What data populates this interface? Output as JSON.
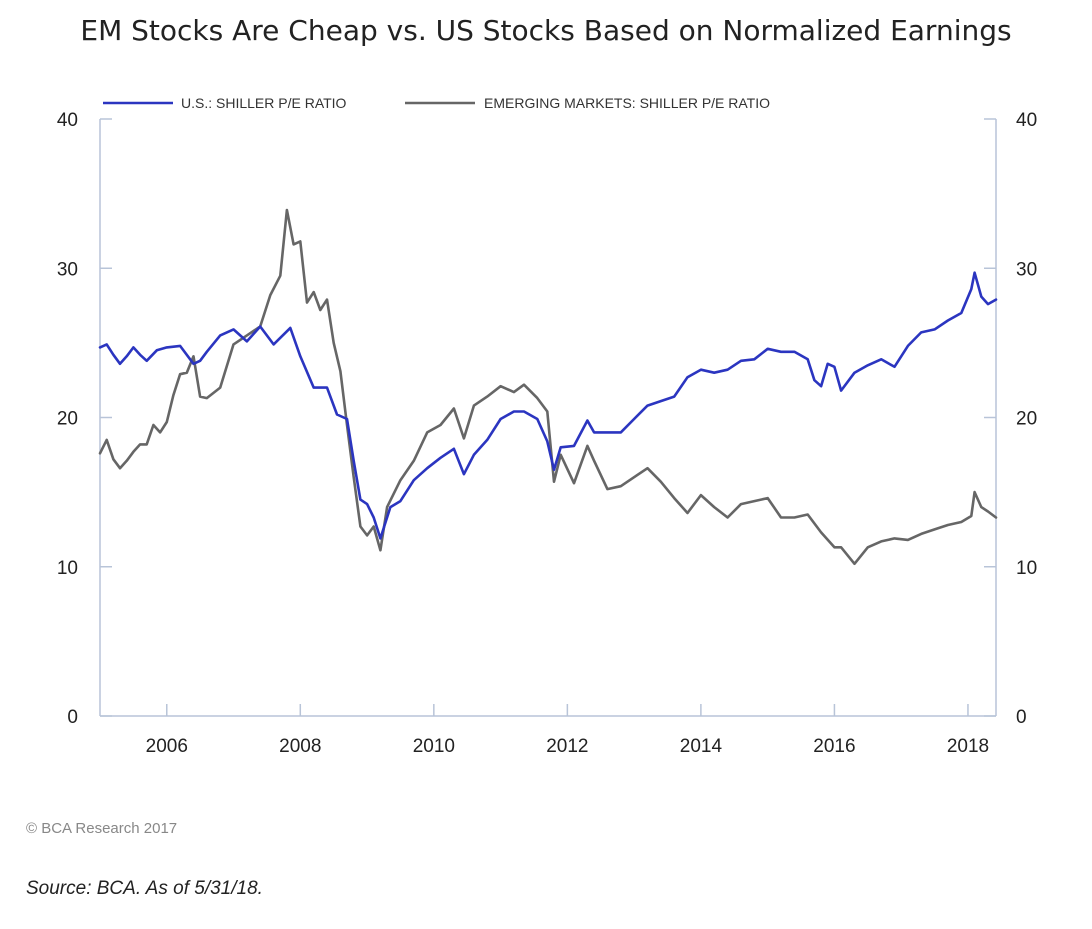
{
  "title": "EM Stocks Are Cheap vs. US Stocks Based on Normalized Earnings",
  "copyright": "© BCA Research 2017",
  "source": "Source: BCA. As of 5/31/18.",
  "colors": {
    "us": "#2b35c0",
    "em": "#666666",
    "axis": "#b8c4d8"
  },
  "chart_data": {
    "type": "line",
    "title": "EM Stocks Are Cheap vs. US Stocks Based on Normalized Earnings",
    "xlim": [
      2005.0,
      2018.42
    ],
    "ylim": [
      0,
      40
    ],
    "y_ticks": [
      0,
      10,
      20,
      30,
      40
    ],
    "x_ticks": [
      2006,
      2008,
      2010,
      2012,
      2014,
      2016,
      2018
    ],
    "legend_position": "top",
    "grid": false,
    "series": [
      {
        "name": "U.S.: SHILLER P/E RATIO",
        "color": "#2b35c0",
        "x": [
          2005.0,
          2005.1,
          2005.2,
          2005.3,
          2005.4,
          2005.5,
          2005.6,
          2005.7,
          2005.85,
          2006.0,
          2006.2,
          2006.4,
          2006.5,
          2006.6,
          2006.8,
          2007.0,
          2007.2,
          2007.4,
          2007.6,
          2007.85,
          2008.0,
          2008.2,
          2008.4,
          2008.55,
          2008.7,
          2008.8,
          2008.9,
          2009.0,
          2009.1,
          2009.2,
          2009.35,
          2009.5,
          2009.7,
          2009.9,
          2010.1,
          2010.3,
          2010.45,
          2010.6,
          2010.8,
          2011.0,
          2011.2,
          2011.35,
          2011.55,
          2011.7,
          2011.8,
          2011.9,
          2012.1,
          2012.3,
          2012.4,
          2012.6,
          2012.8,
          2013.0,
          2013.2,
          2013.4,
          2013.6,
          2013.8,
          2014.0,
          2014.2,
          2014.4,
          2014.6,
          2014.8,
          2015.0,
          2015.2,
          2015.4,
          2015.6,
          2015.7,
          2015.8,
          2015.9,
          2016.0,
          2016.1,
          2016.3,
          2016.5,
          2016.7,
          2016.9,
          2017.1,
          2017.3,
          2017.5,
          2017.7,
          2017.9,
          2018.05,
          2018.1,
          2018.2,
          2018.3,
          2018.42
        ],
        "values": [
          24.7,
          24.9,
          24.2,
          23.6,
          24.1,
          24.7,
          24.2,
          23.8,
          24.5,
          24.7,
          24.8,
          23.6,
          23.8,
          24.4,
          25.5,
          25.9,
          25.1,
          26.1,
          24.9,
          26.0,
          24.1,
          22.0,
          22.0,
          20.2,
          19.9,
          17.1,
          14.5,
          14.2,
          13.3,
          11.9,
          14.0,
          14.4,
          15.8,
          16.6,
          17.3,
          17.9,
          16.2,
          17.5,
          18.5,
          19.9,
          20.4,
          20.4,
          19.9,
          18.4,
          16.5,
          18.0,
          18.1,
          19.8,
          19.0,
          19.0,
          19.0,
          19.9,
          20.8,
          21.1,
          21.4,
          22.7,
          23.2,
          23.0,
          23.2,
          23.8,
          23.9,
          24.6,
          24.4,
          24.4,
          23.9,
          22.5,
          22.1,
          23.6,
          23.4,
          21.8,
          23.0,
          23.5,
          23.9,
          23.4,
          24.8,
          25.7,
          25.9,
          26.5,
          27.0,
          28.6,
          29.7,
          28.1,
          27.6,
          27.9
        ]
      },
      {
        "name": "EMERGING MARKETS: SHILLER P/E RATIO",
        "color": "#666666",
        "x": [
          2005.0,
          2005.1,
          2005.2,
          2005.3,
          2005.4,
          2005.5,
          2005.6,
          2005.7,
          2005.8,
          2005.9,
          2006.0,
          2006.1,
          2006.2,
          2006.3,
          2006.4,
          2006.5,
          2006.6,
          2006.8,
          2007.0,
          2007.2,
          2007.4,
          2007.55,
          2007.7,
          2007.8,
          2007.9,
          2008.0,
          2008.1,
          2008.2,
          2008.3,
          2008.4,
          2008.5,
          2008.6,
          2008.7,
          2008.8,
          2008.9,
          2009.0,
          2009.1,
          2009.2,
          2009.3,
          2009.5,
          2009.7,
          2009.9,
          2010.1,
          2010.3,
          2010.45,
          2010.6,
          2010.8,
          2011.0,
          2011.2,
          2011.35,
          2011.55,
          2011.7,
          2011.8,
          2011.9,
          2012.1,
          2012.3,
          2012.4,
          2012.6,
          2012.8,
          2013.0,
          2013.2,
          2013.4,
          2013.6,
          2013.8,
          2014.0,
          2014.2,
          2014.4,
          2014.6,
          2014.8,
          2015.0,
          2015.2,
          2015.4,
          2015.6,
          2015.8,
          2016.0,
          2016.1,
          2016.3,
          2016.5,
          2016.7,
          2016.9,
          2017.1,
          2017.3,
          2017.5,
          2017.7,
          2017.9,
          2018.05,
          2018.1,
          2018.2,
          2018.3,
          2018.42
        ],
        "values": [
          17.6,
          18.5,
          17.2,
          16.6,
          17.1,
          17.7,
          18.2,
          18.2,
          19.5,
          19.0,
          19.7,
          21.5,
          22.9,
          23.0,
          24.1,
          21.4,
          21.3,
          22.0,
          24.9,
          25.5,
          26.1,
          28.2,
          29.5,
          33.9,
          31.6,
          31.8,
          27.7,
          28.4,
          27.2,
          27.9,
          25.0,
          23.1,
          19.5,
          16.0,
          12.7,
          12.1,
          12.7,
          11.1,
          14.0,
          15.8,
          17.1,
          19.0,
          19.5,
          20.6,
          18.6,
          20.8,
          21.4,
          22.1,
          21.7,
          22.2,
          21.3,
          20.4,
          15.7,
          17.5,
          15.6,
          18.1,
          17.1,
          15.2,
          15.4,
          16.0,
          16.6,
          15.7,
          14.6,
          13.6,
          14.8,
          14.0,
          13.3,
          14.2,
          14.4,
          14.6,
          13.3,
          13.3,
          13.5,
          12.3,
          11.3,
          11.3,
          10.2,
          11.3,
          11.7,
          11.9,
          11.8,
          12.2,
          12.5,
          12.8,
          13.0,
          13.4,
          15.0,
          14.0,
          13.7,
          13.3
        ]
      }
    ]
  }
}
